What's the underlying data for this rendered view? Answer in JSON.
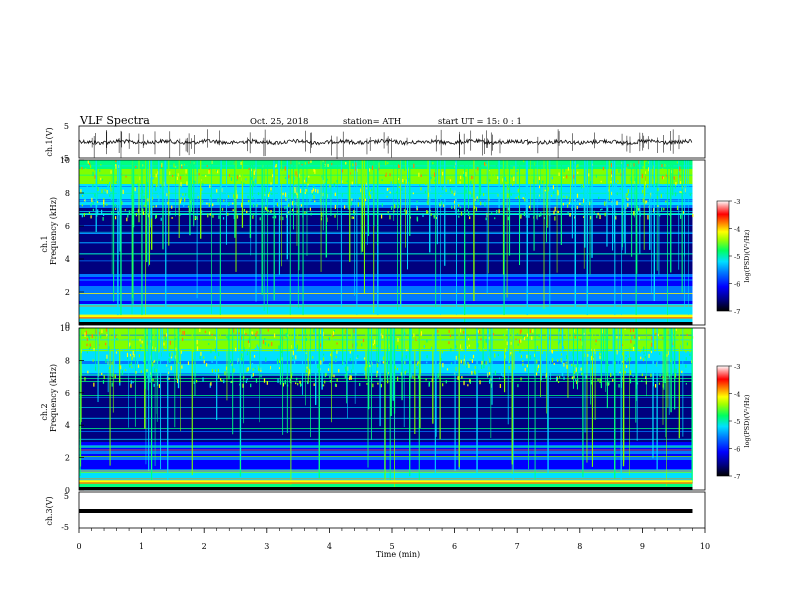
{
  "header": {
    "title": "VLF  Spectra",
    "date": "Oct. 25, 2018",
    "station": "station= ATH",
    "start": "start  UT  =    15: 0   : 1"
  },
  "colors": {
    "background": "#ffffff",
    "axes": "#000000",
    "waveform": "#111111",
    "colormap": [
      "#000000",
      "#00007f",
      "#0000ff",
      "#0078ff",
      "#00e0ff",
      "#00ff80",
      "#80ff00",
      "#ffff00",
      "#ff8000",
      "#ff0000",
      "#ff8080",
      "#ffffff"
    ]
  },
  "chart_data": [
    {
      "type": "line",
      "panel": "ch1-waveform",
      "ylabel": "ch.1(V)",
      "yticks": [
        "5",
        "-5"
      ],
      "ylim": [
        -5,
        5
      ],
      "xlim": [
        0,
        10
      ],
      "description_values": {
        "baseline": 0,
        "typical_amplitude": 1
      }
    },
    {
      "type": "heatmap",
      "panel": "ch1-spectrogram",
      "ylabel_top": "ch.1",
      "ylabel": "Frequency (kHz)",
      "yticks": [
        "0",
        "2",
        "4",
        "6",
        "8",
        "10"
      ],
      "ylim": [
        0,
        10
      ],
      "xlim": [
        0,
        9.8
      ],
      "colorbar": {
        "label": "log(PSD)(V²/Hz)",
        "ticks": [
          "-3",
          "-4",
          "-5",
          "-6",
          "-7"
        ],
        "range": [
          -7,
          -3
        ]
      }
    },
    {
      "type": "heatmap",
      "panel": "ch2-spectrogram",
      "ylabel_top": "ch.2",
      "ylabel": "Frequency (kHz)",
      "yticks": [
        "0",
        "2",
        "4",
        "6",
        "8",
        "10"
      ],
      "ylim": [
        0,
        10
      ],
      "xlim": [
        0,
        9.8
      ],
      "colorbar": {
        "label": "log(PSD)(V²/Hz)",
        "ticks": [
          "-3",
          "-4",
          "-5",
          "-6",
          "-7"
        ],
        "range": [
          -7,
          -3
        ]
      }
    },
    {
      "type": "line",
      "panel": "ch3-waveform",
      "ylabel": "ch.3(V)",
      "yticks": [
        "5",
        "-5"
      ],
      "ylim": [
        -5,
        5
      ],
      "xlim": [
        0,
        10
      ],
      "x": [
        0,
        9.8
      ],
      "y": [
        -0.9,
        -0.9
      ]
    }
  ],
  "xaxis": {
    "label": "Time  (min)",
    "ticks": [
      "0",
      "1",
      "2",
      "3",
      "4",
      "5",
      "6",
      "7",
      "8",
      "9",
      "10"
    ]
  }
}
